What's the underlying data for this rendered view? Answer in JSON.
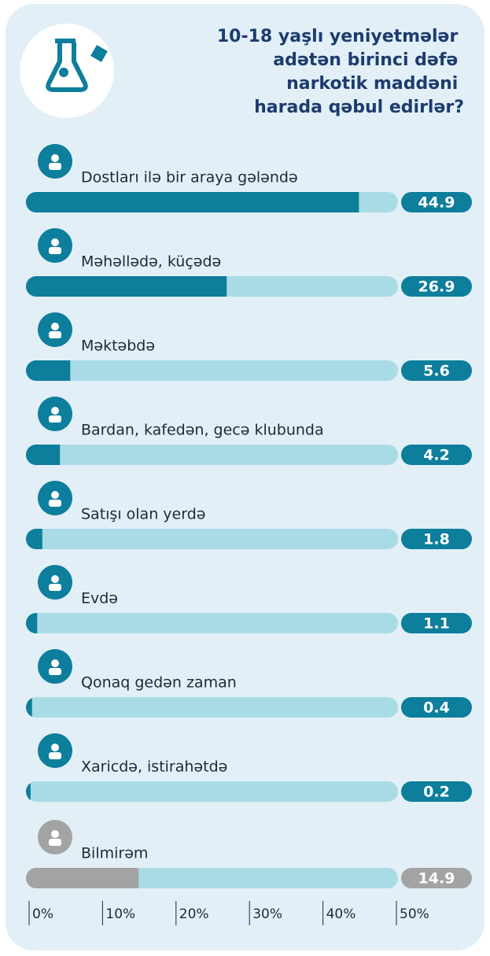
{
  "chart_data": {
    "type": "bar",
    "title": [
      "10-18 yaşlı yeniyetmələr",
      "adətən birinci dəfə",
      "narkotik maddəni",
      "harada qəbul edirlər?"
    ],
    "categories": [
      "Dostları ilə bir araya gələndə",
      "Məhəllədə, küçədə",
      "Məktəbdə",
      "Bardan, kafedən, gecə klubunda",
      "Satışı olan yerdə",
      "Evdə",
      "Qonaq gedən zaman",
      "Xaricdə, istirahətdə",
      "Bilmirəm"
    ],
    "values": [
      44.9,
      26.9,
      5.6,
      4.2,
      1.8,
      1.1,
      0.4,
      0.2,
      14.9
    ],
    "colors": [
      "#0d7e9c",
      "#0d7e9c",
      "#0d7e9c",
      "#0d7e9c",
      "#0d7e9c",
      "#0d7e9c",
      "#0d7e9c",
      "#0d7e9c",
      "#a3a3a3"
    ],
    "track_color": "#a9dbe6",
    "xlim": [
      0,
      50
    ],
    "xticks": [
      {
        "value": 0,
        "label": "0%"
      },
      {
        "value": 10,
        "label": "10%"
      },
      {
        "value": 20,
        "label": "20%"
      },
      {
        "value": 30,
        "label": "30%"
      },
      {
        "value": 40,
        "label": "40%"
      },
      {
        "value": 50,
        "label": "50%"
      }
    ]
  }
}
